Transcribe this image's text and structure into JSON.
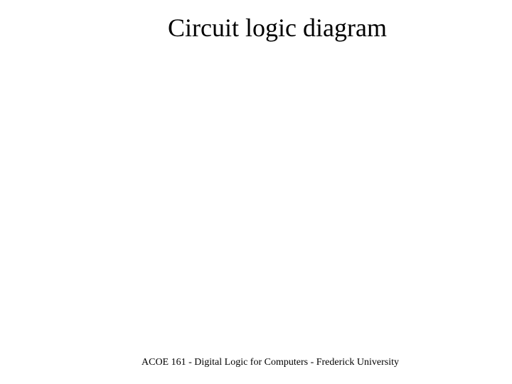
{
  "slide": {
    "title": "Circuit logic diagram",
    "footer": "ACOE 161 - Digital Logic for Computers - Frederick University",
    "background_color": "#ffffff",
    "text_color": "#000000",
    "title_fontsize": 36,
    "footer_fontsize": 14,
    "font_family": "Times New Roman"
  }
}
